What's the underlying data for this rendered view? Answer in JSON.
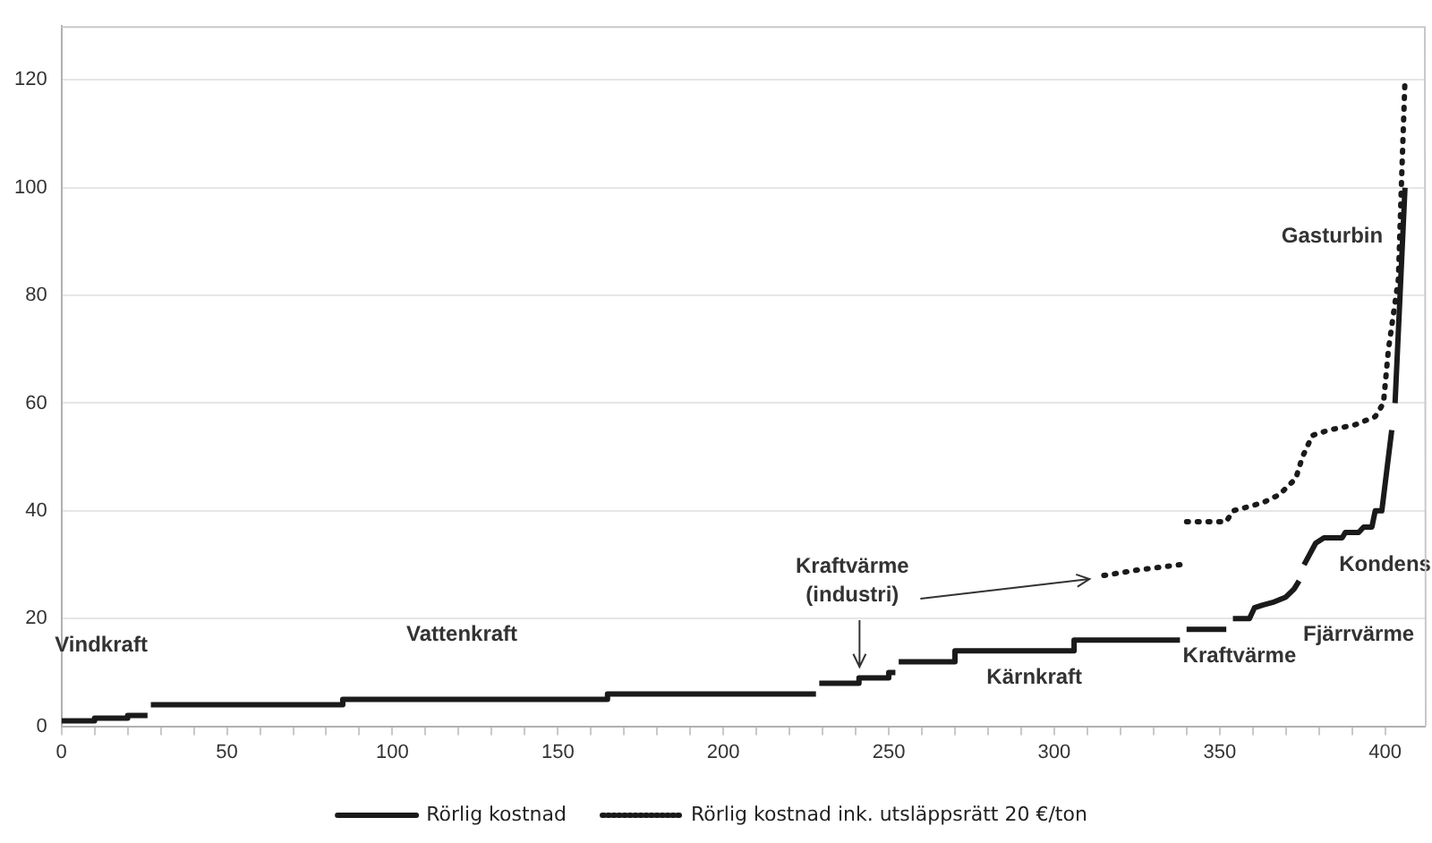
{
  "chart_data": {
    "type": "line",
    "xlim": [
      0,
      412
    ],
    "ylim": [
      0,
      130
    ],
    "xticks": [
      0,
      {
        "value": 10,
        "label": null
      },
      {
        "value": 20,
        "label": null
      },
      {
        "value": 30,
        "label": null
      },
      {
        "value": 40,
        "label": null
      },
      50,
      {
        "value": 60,
        "label": null
      },
      {
        "value": 70,
        "label": null
      },
      {
        "value": 80,
        "label": null
      },
      {
        "value": 90,
        "label": null
      },
      100,
      {
        "value": 110,
        "label": null
      },
      {
        "value": 120,
        "label": null
      },
      {
        "value": 130,
        "label": null
      },
      {
        "value": 140,
        "label": null
      },
      150,
      {
        "value": 160,
        "label": null
      },
      {
        "value": 170,
        "label": null
      },
      {
        "value": 180,
        "label": null
      },
      {
        "value": 190,
        "label": null
      },
      200,
      {
        "value": 210,
        "label": null
      },
      {
        "value": 220,
        "label": null
      },
      {
        "value": 230,
        "label": null
      },
      {
        "value": 240,
        "label": null
      },
      250,
      {
        "value": 260,
        "label": null
      },
      {
        "value": 270,
        "label": null
      },
      {
        "value": 280,
        "label": null
      },
      {
        "value": 290,
        "label": null
      },
      300,
      {
        "value": 310,
        "label": null
      },
      {
        "value": 320,
        "label": null
      },
      {
        "value": 330,
        "label": null
      },
      {
        "value": 340,
        "label": null
      },
      350,
      {
        "value": 360,
        "label": null
      },
      {
        "value": 370,
        "label": null
      },
      {
        "value": 380,
        "label": null
      },
      {
        "value": 390,
        "label": null
      },
      400
    ],
    "yticks": [
      0,
      20,
      40,
      60,
      80,
      100,
      120
    ],
    "grid": "y",
    "legend": "bottom",
    "marker": "none",
    "series": [
      {
        "name": "Rörlig kostnad",
        "color": "#1a1a1a",
        "line_style": "solid",
        "x": [
          0,
          10,
          10,
          20,
          20,
          26,
          26.5,
          27,
          85,
          85,
          165,
          165,
          228,
          228.5,
          229,
          241,
          241,
          250,
          250,
          252,
          252.5,
          253,
          270,
          270,
          306,
          306,
          338,
          339,
          340,
          352,
          353,
          354,
          359,
          360.5,
          363,
          366,
          370,
          372.5,
          374,
          374.8,
          375.5,
          379,
          381.5,
          387,
          388,
          392,
          393.5,
          396,
          397,
          399,
          402,
          402.3,
          403,
          406
        ],
        "values": [
          1,
          1,
          1.5,
          1.5,
          2,
          2,
          null,
          4,
          4,
          5,
          5,
          6,
          6,
          null,
          8,
          8,
          9,
          9,
          10,
          10,
          null,
          12,
          12,
          14,
          14,
          16,
          16,
          null,
          18,
          18,
          null,
          20,
          20,
          22,
          22.5,
          23,
          24,
          25.5,
          27,
          null,
          30,
          34,
          35,
          35,
          36,
          36,
          37,
          37,
          40,
          40,
          55,
          null,
          60,
          100
        ]
      },
      {
        "name": "Rörlig kostnad ink. utsläppsrätt 20 €/ton",
        "color": "#1a1a1a",
        "line_style": "dotted",
        "x": [
          315,
          325,
          338,
          339,
          340,
          352,
          354,
          363,
          368,
          373,
          375,
          378,
          383,
          391,
          397,
          399.5,
          401,
          404,
          405,
          406
        ],
        "values": [
          28,
          29,
          30,
          null,
          38,
          38,
          40,
          41.5,
          43,
          46,
          50,
          54,
          55,
          56,
          57.5,
          60,
          70,
          83,
          102,
          120
        ]
      }
    ],
    "annotations": [
      "Vindkraft",
      "Vattenkraft",
      "Kraftvärme\n(industri)",
      "Kärnkraft",
      "Kraftvärme",
      "Fjärrvärme",
      "Kondens",
      "Gasturbin"
    ]
  }
}
